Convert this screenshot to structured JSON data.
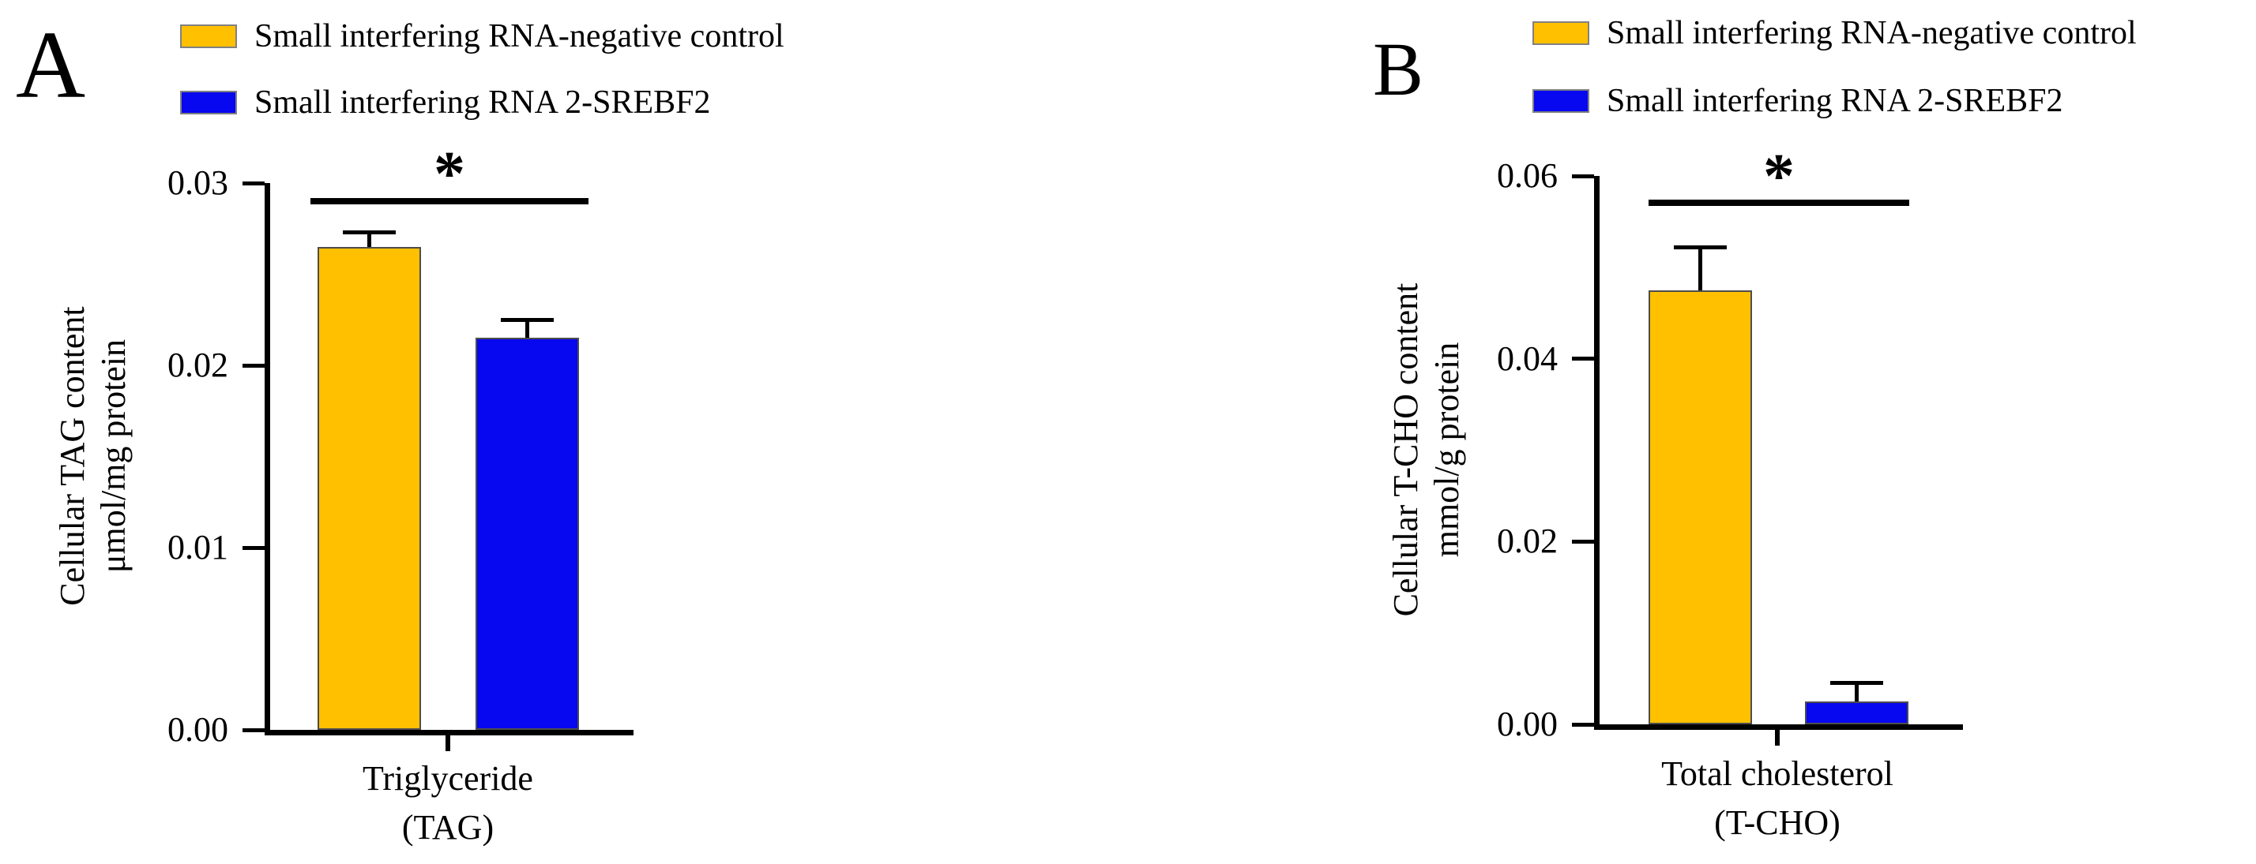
{
  "figure": {
    "background": "#ffffff",
    "axis_color": "#000000",
    "panels": [
      {
        "panel_label": "A",
        "legend": [
          {
            "label": "Small interfering RNA-negative control",
            "color": "#FFC000"
          },
          {
            "label": "Small interfering RNA 2-SREBF2",
            "color": "#0707F0"
          }
        ],
        "chart_data": {
          "type": "bar",
          "title": "",
          "categories": [
            "Triglyceride (TAG)"
          ],
          "category_lines": [
            "Triglyceride",
            "(TAG)"
          ],
          "series": [
            {
              "name": "Small interfering RNA-negative control",
              "values": [
                0.0265
              ],
              "errors": [
                0.0007
              ],
              "color": "#FFC000"
            },
            {
              "name": "Small interfering RNA 2-SREBF2",
              "values": [
                0.0215
              ],
              "errors": [
                0.0009
              ],
              "color": "#0707F0"
            }
          ],
          "ylabel": "Cellular TAG content μmol/mg protein",
          "ylabel_lines": [
            "Cellular TAG content",
            "μmol/mg protein"
          ],
          "xlabel": "",
          "ylim": [
            0,
            0.03
          ],
          "yticks": [
            {
              "value": 0.0,
              "label": "0.00"
            },
            {
              "value": 0.01,
              "label": "0.01"
            },
            {
              "value": 0.02,
              "label": "0.02"
            },
            {
              "value": 0.03,
              "label": "0.03"
            }
          ],
          "grid": false,
          "legend_position": "top",
          "error_bars": "upper",
          "significance": {
            "symbol": "*",
            "between": [
              "Small interfering RNA-negative control",
              "Small interfering RNA 2-SREBF2"
            ]
          }
        }
      },
      {
        "panel_label": "B",
        "legend": [
          {
            "label": "Small interfering RNA-negative control",
            "color": "#FFC000"
          },
          {
            "label": "Small interfering RNA 2-SREBF2",
            "color": "#0707F0"
          }
        ],
        "chart_data": {
          "type": "bar",
          "title": "",
          "categories": [
            "Total cholesterol (T-CHO)"
          ],
          "category_lines": [
            "Total cholesterol",
            "(T-CHO)"
          ],
          "series": [
            {
              "name": "Small interfering RNA-negative control",
              "values": [
                0.0475
              ],
              "errors": [
                0.0045
              ],
              "color": "#FFC000"
            },
            {
              "name": "Small interfering RNA 2-SREBF2",
              "values": [
                0.0025
              ],
              "errors": [
                0.0018
              ],
              "color": "#0707F0"
            }
          ],
          "ylabel": "Cellular T-CHO content mmol/g protein",
          "ylabel_lines": [
            "Cellular T-CHO content",
            "mmol/g protein"
          ],
          "xlabel": "",
          "ylim": [
            0,
            0.06
          ],
          "yticks": [
            {
              "value": 0.0,
              "label": "0.00"
            },
            {
              "value": 0.02,
              "label": "0.02"
            },
            {
              "value": 0.04,
              "label": "0.04"
            },
            {
              "value": 0.06,
              "label": "0.06"
            }
          ],
          "grid": false,
          "legend_position": "top",
          "error_bars": "upper",
          "significance": {
            "symbol": "*",
            "between": [
              "Small interfering RNA-negative control",
              "Small interfering RNA 2-SREBF2"
            ]
          }
        }
      }
    ]
  }
}
